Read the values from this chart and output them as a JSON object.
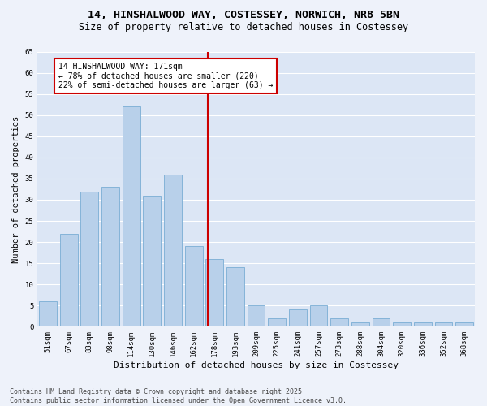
{
  "title_line1": "14, HINSHALWOOD WAY, COSTESSEY, NORWICH, NR8 5BN",
  "title_line2": "Size of property relative to detached houses in Costessey",
  "xlabel": "Distribution of detached houses by size in Costessey",
  "ylabel": "Number of detached properties",
  "categories": [
    "51sqm",
    "67sqm",
    "83sqm",
    "98sqm",
    "114sqm",
    "130sqm",
    "146sqm",
    "162sqm",
    "178sqm",
    "193sqm",
    "209sqm",
    "225sqm",
    "241sqm",
    "257sqm",
    "273sqm",
    "288sqm",
    "304sqm",
    "320sqm",
    "336sqm",
    "352sqm",
    "368sqm"
  ],
  "values": [
    6,
    22,
    32,
    33,
    52,
    31,
    36,
    19,
    16,
    14,
    5,
    2,
    4,
    5,
    2,
    1,
    2,
    1,
    1,
    1,
    1
  ],
  "bar_color": "#b8d0ea",
  "bar_edge_color": "#7aadd4",
  "vline_color": "#cc0000",
  "annotation_text": "14 HINSHALWOOD WAY: 171sqm\n← 78% of detached houses are smaller (220)\n22% of semi-detached houses are larger (63) →",
  "annotation_box_color": "#ffffff",
  "annotation_box_edge_color": "#cc0000",
  "ylim": [
    0,
    65
  ],
  "yticks": [
    0,
    5,
    10,
    15,
    20,
    25,
    30,
    35,
    40,
    45,
    50,
    55,
    60,
    65
  ],
  "background_color": "#dce6f5",
  "fig_background_color": "#eef2fa",
  "grid_color": "#ffffff",
  "footer_line1": "Contains HM Land Registry data © Crown copyright and database right 2025.",
  "footer_line2": "Contains public sector information licensed under the Open Government Licence v3.0.",
  "title_fontsize": 9.5,
  "subtitle_fontsize": 8.5,
  "xlabel_fontsize": 8,
  "ylabel_fontsize": 7.5,
  "tick_fontsize": 6.5,
  "annotation_fontsize": 7,
  "footer_fontsize": 6
}
